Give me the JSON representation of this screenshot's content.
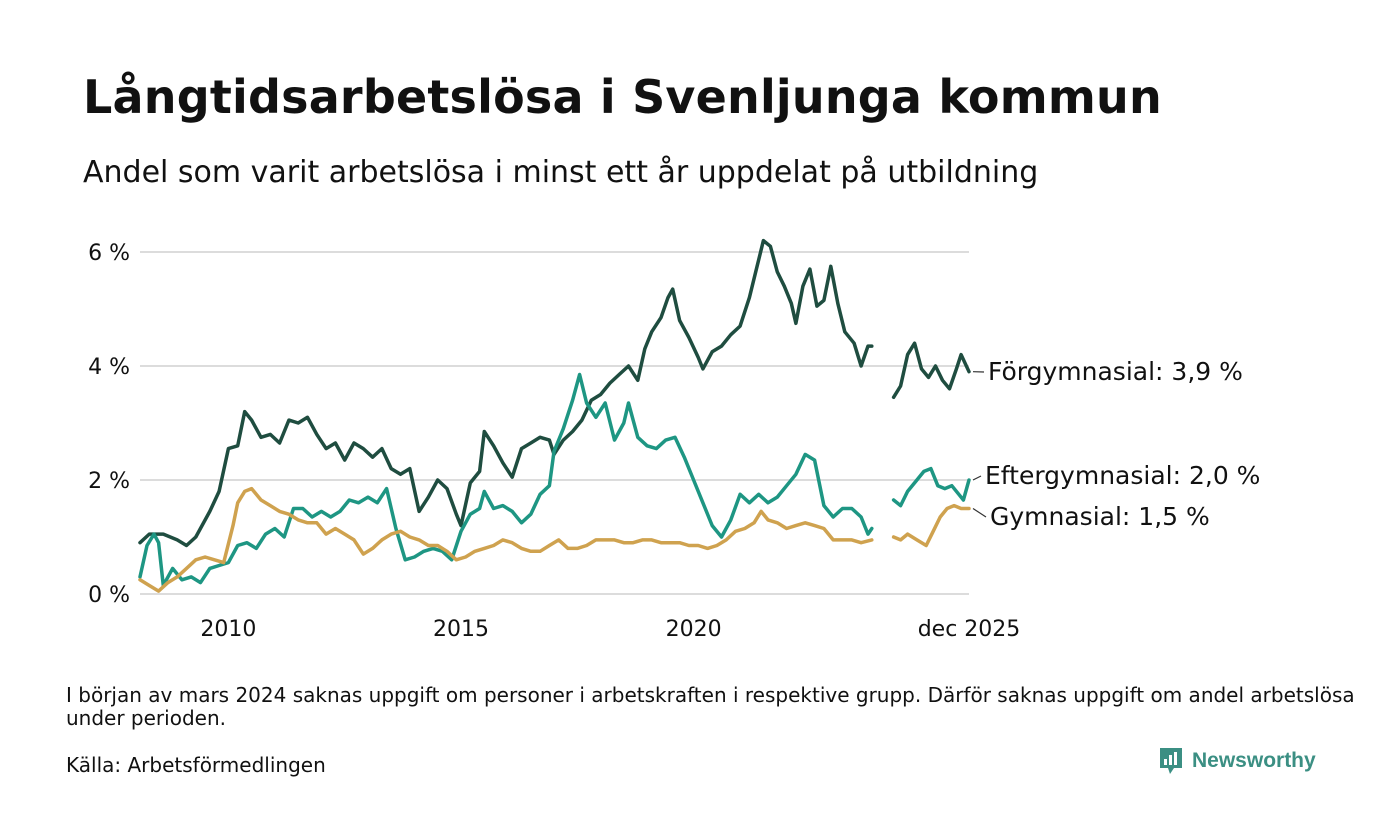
{
  "title": "Långtidsarbetslösa i Svenljunga kommun",
  "subtitle": "Andel som varit arbetslösa i minst ett år uppdelat på utbildning",
  "note": "I början av mars 2024 saknas uppgift om personer i arbetskraften i respektive grupp. Därför saknas uppgift om andel arbetslösa under perioden.",
  "source": "Källa: Arbetsförmedlingen",
  "brand": "Newsworthy",
  "colors": {
    "forgymnasial": "#1f4d40",
    "eftergymnasial": "#1e9683",
    "gymnasial": "#cfa24f",
    "grid": "#dcdcdc",
    "brand": "#3b8f83"
  },
  "chart_data": {
    "type": "line",
    "title": "Långtidsarbetslösa i Svenljunga kommun",
    "subtitle": "Andel som varit arbetslösa i minst ett år uppdelat på utbildning",
    "xlabel": "",
    "ylabel": "",
    "ylim": [
      0,
      6.5
    ],
    "xlim": [
      2008.1,
      2025.92
    ],
    "y_ticks": [
      0,
      2,
      4,
      6
    ],
    "y_tick_labels": [
      "0 %",
      "2 %",
      "4 %",
      "6 %"
    ],
    "x_ticks": [
      2010,
      2015,
      2020,
      2025.92
    ],
    "x_tick_labels": [
      "2010",
      "2015",
      "2020",
      "dec 2025"
    ],
    "grid": true,
    "gap": [
      2023.83,
      2024.3
    ],
    "series": [
      {
        "name": "Förgymnasial",
        "label": "Förgymnasial: 3,9 %",
        "color_key": "forgymnasial",
        "points": [
          [
            2008.1,
            0.9
          ],
          [
            2008.3,
            1.05
          ],
          [
            2008.6,
            1.05
          ],
          [
            2008.9,
            0.95
          ],
          [
            2009.1,
            0.85
          ],
          [
            2009.3,
            1.0
          ],
          [
            2009.6,
            1.45
          ],
          [
            2009.8,
            1.8
          ],
          [
            2010.0,
            2.55
          ],
          [
            2010.2,
            2.6
          ],
          [
            2010.35,
            3.2
          ],
          [
            2010.5,
            3.05
          ],
          [
            2010.7,
            2.75
          ],
          [
            2010.9,
            2.8
          ],
          [
            2011.1,
            2.65
          ],
          [
            2011.3,
            3.05
          ],
          [
            2011.5,
            3.0
          ],
          [
            2011.7,
            3.1
          ],
          [
            2011.9,
            2.8
          ],
          [
            2012.1,
            2.55
          ],
          [
            2012.3,
            2.65
          ],
          [
            2012.5,
            2.35
          ],
          [
            2012.7,
            2.65
          ],
          [
            2012.9,
            2.55
          ],
          [
            2013.1,
            2.4
          ],
          [
            2013.3,
            2.55
          ],
          [
            2013.5,
            2.2
          ],
          [
            2013.7,
            2.1
          ],
          [
            2013.9,
            2.2
          ],
          [
            2014.1,
            1.45
          ],
          [
            2014.3,
            1.7
          ],
          [
            2014.5,
            2.0
          ],
          [
            2014.7,
            1.85
          ],
          [
            2014.9,
            1.4
          ],
          [
            2015.0,
            1.2
          ],
          [
            2015.2,
            1.95
          ],
          [
            2015.4,
            2.15
          ],
          [
            2015.5,
            2.85
          ],
          [
            2015.7,
            2.6
          ],
          [
            2015.9,
            2.3
          ],
          [
            2016.1,
            2.05
          ],
          [
            2016.3,
            2.55
          ],
          [
            2016.5,
            2.65
          ],
          [
            2016.7,
            2.75
          ],
          [
            2016.9,
            2.7
          ],
          [
            2017.0,
            2.45
          ],
          [
            2017.2,
            2.7
          ],
          [
            2017.4,
            2.85
          ],
          [
            2017.6,
            3.05
          ],
          [
            2017.8,
            3.4
          ],
          [
            2018.0,
            3.5
          ],
          [
            2018.2,
            3.7
          ],
          [
            2018.4,
            3.85
          ],
          [
            2018.6,
            4.0
          ],
          [
            2018.8,
            3.75
          ],
          [
            2018.95,
            4.3
          ],
          [
            2019.1,
            4.6
          ],
          [
            2019.3,
            4.85
          ],
          [
            2019.45,
            5.2
          ],
          [
            2019.55,
            5.35
          ],
          [
            2019.7,
            4.8
          ],
          [
            2019.9,
            4.5
          ],
          [
            2020.1,
            4.15
          ],
          [
            2020.2,
            3.95
          ],
          [
            2020.4,
            4.25
          ],
          [
            2020.6,
            4.35
          ],
          [
            2020.8,
            4.55
          ],
          [
            2021.0,
            4.7
          ],
          [
            2021.2,
            5.2
          ],
          [
            2021.35,
            5.7
          ],
          [
            2021.5,
            6.2
          ],
          [
            2021.65,
            6.1
          ],
          [
            2021.8,
            5.65
          ],
          [
            2021.95,
            5.4
          ],
          [
            2022.1,
            5.1
          ],
          [
            2022.2,
            4.75
          ],
          [
            2022.35,
            5.4
          ],
          [
            2022.5,
            5.7
          ],
          [
            2022.65,
            5.05
          ],
          [
            2022.8,
            5.15
          ],
          [
            2022.95,
            5.75
          ],
          [
            2023.1,
            5.1
          ],
          [
            2023.25,
            4.6
          ],
          [
            2023.45,
            4.4
          ],
          [
            2023.6,
            4.0
          ],
          [
            2023.75,
            4.35
          ],
          [
            2023.83,
            4.35
          ],
          [
            2024.3,
            3.45
          ],
          [
            2024.45,
            3.65
          ],
          [
            2024.6,
            4.2
          ],
          [
            2024.75,
            4.4
          ],
          [
            2024.9,
            3.95
          ],
          [
            2025.05,
            3.8
          ],
          [
            2025.2,
            4.0
          ],
          [
            2025.35,
            3.75
          ],
          [
            2025.5,
            3.6
          ],
          [
            2025.65,
            3.95
          ],
          [
            2025.75,
            4.2
          ],
          [
            2025.92,
            3.9
          ]
        ]
      },
      {
        "name": "Eftergymnasial",
        "label": "Eftergymnasial: 2,0 %",
        "color_key": "eftergymnasial",
        "points": [
          [
            2008.1,
            0.3
          ],
          [
            2008.25,
            0.85
          ],
          [
            2008.4,
            1.05
          ],
          [
            2008.5,
            0.9
          ],
          [
            2008.6,
            0.15
          ],
          [
            2008.8,
            0.45
          ],
          [
            2009.0,
            0.25
          ],
          [
            2009.2,
            0.3
          ],
          [
            2009.4,
            0.2
          ],
          [
            2009.6,
            0.45
          ],
          [
            2009.8,
            0.5
          ],
          [
            2010.0,
            0.55
          ],
          [
            2010.2,
            0.85
          ],
          [
            2010.4,
            0.9
          ],
          [
            2010.6,
            0.8
          ],
          [
            2010.8,
            1.05
          ],
          [
            2011.0,
            1.15
          ],
          [
            2011.2,
            1.0
          ],
          [
            2011.4,
            1.5
          ],
          [
            2011.6,
            1.5
          ],
          [
            2011.8,
            1.35
          ],
          [
            2012.0,
            1.45
          ],
          [
            2012.2,
            1.35
          ],
          [
            2012.4,
            1.45
          ],
          [
            2012.6,
            1.65
          ],
          [
            2012.8,
            1.6
          ],
          [
            2013.0,
            1.7
          ],
          [
            2013.2,
            1.6
          ],
          [
            2013.4,
            1.85
          ],
          [
            2013.6,
            1.15
          ],
          [
            2013.8,
            0.6
          ],
          [
            2014.0,
            0.65
          ],
          [
            2014.2,
            0.75
          ],
          [
            2014.4,
            0.8
          ],
          [
            2014.6,
            0.75
          ],
          [
            2014.8,
            0.6
          ],
          [
            2015.0,
            1.1
          ],
          [
            2015.2,
            1.4
          ],
          [
            2015.4,
            1.5
          ],
          [
            2015.5,
            1.8
          ],
          [
            2015.7,
            1.5
          ],
          [
            2015.9,
            1.55
          ],
          [
            2016.1,
            1.45
          ],
          [
            2016.3,
            1.25
          ],
          [
            2016.5,
            1.4
          ],
          [
            2016.7,
            1.75
          ],
          [
            2016.9,
            1.9
          ],
          [
            2017.0,
            2.5
          ],
          [
            2017.2,
            2.9
          ],
          [
            2017.4,
            3.4
          ],
          [
            2017.55,
            3.85
          ],
          [
            2017.7,
            3.35
          ],
          [
            2017.9,
            3.1
          ],
          [
            2018.1,
            3.35
          ],
          [
            2018.3,
            2.7
          ],
          [
            2018.5,
            3.0
          ],
          [
            2018.6,
            3.35
          ],
          [
            2018.8,
            2.75
          ],
          [
            2019.0,
            2.6
          ],
          [
            2019.2,
            2.55
          ],
          [
            2019.4,
            2.7
          ],
          [
            2019.6,
            2.75
          ],
          [
            2019.8,
            2.4
          ],
          [
            2020.0,
            2.0
          ],
          [
            2020.2,
            1.6
          ],
          [
            2020.4,
            1.2
          ],
          [
            2020.6,
            1.0
          ],
          [
            2020.8,
            1.3
          ],
          [
            2021.0,
            1.75
          ],
          [
            2021.2,
            1.6
          ],
          [
            2021.4,
            1.75
          ],
          [
            2021.6,
            1.6
          ],
          [
            2021.8,
            1.7
          ],
          [
            2022.0,
            1.9
          ],
          [
            2022.2,
            2.1
          ],
          [
            2022.4,
            2.45
          ],
          [
            2022.6,
            2.35
          ],
          [
            2022.8,
            1.55
          ],
          [
            2023.0,
            1.35
          ],
          [
            2023.2,
            1.5
          ],
          [
            2023.4,
            1.5
          ],
          [
            2023.6,
            1.35
          ],
          [
            2023.75,
            1.05
          ],
          [
            2023.83,
            1.15
          ],
          [
            2024.3,
            1.65
          ],
          [
            2024.45,
            1.55
          ],
          [
            2024.6,
            1.8
          ],
          [
            2024.8,
            2.0
          ],
          [
            2024.95,
            2.15
          ],
          [
            2025.1,
            2.2
          ],
          [
            2025.25,
            1.9
          ],
          [
            2025.4,
            1.85
          ],
          [
            2025.55,
            1.9
          ],
          [
            2025.7,
            1.75
          ],
          [
            2025.8,
            1.65
          ],
          [
            2025.92,
            2.0
          ]
        ]
      },
      {
        "name": "Gymnasial",
        "label": "Gymnasial: 1,5 %",
        "color_key": "gymnasial",
        "points": [
          [
            2008.1,
            0.25
          ],
          [
            2008.3,
            0.15
          ],
          [
            2008.5,
            0.05
          ],
          [
            2008.7,
            0.2
          ],
          [
            2008.9,
            0.3
          ],
          [
            2009.1,
            0.45
          ],
          [
            2009.3,
            0.6
          ],
          [
            2009.5,
            0.65
          ],
          [
            2009.7,
            0.6
          ],
          [
            2009.9,
            0.55
          ],
          [
            2010.1,
            1.2
          ],
          [
            2010.2,
            1.6
          ],
          [
            2010.35,
            1.8
          ],
          [
            2010.5,
            1.85
          ],
          [
            2010.7,
            1.65
          ],
          [
            2010.9,
            1.55
          ],
          [
            2011.1,
            1.45
          ],
          [
            2011.3,
            1.4
          ],
          [
            2011.5,
            1.3
          ],
          [
            2011.7,
            1.25
          ],
          [
            2011.9,
            1.25
          ],
          [
            2012.1,
            1.05
          ],
          [
            2012.3,
            1.15
          ],
          [
            2012.5,
            1.05
          ],
          [
            2012.7,
            0.95
          ],
          [
            2012.9,
            0.7
          ],
          [
            2013.1,
            0.8
          ],
          [
            2013.3,
            0.95
          ],
          [
            2013.5,
            1.05
          ],
          [
            2013.7,
            1.1
          ],
          [
            2013.9,
            1.0
          ],
          [
            2014.1,
            0.95
          ],
          [
            2014.3,
            0.85
          ],
          [
            2014.5,
            0.85
          ],
          [
            2014.7,
            0.75
          ],
          [
            2014.9,
            0.6
          ],
          [
            2015.1,
            0.65
          ],
          [
            2015.3,
            0.75
          ],
          [
            2015.5,
            0.8
          ],
          [
            2015.7,
            0.85
          ],
          [
            2015.9,
            0.95
          ],
          [
            2016.1,
            0.9
          ],
          [
            2016.3,
            0.8
          ],
          [
            2016.5,
            0.75
          ],
          [
            2016.7,
            0.75
          ],
          [
            2016.9,
            0.85
          ],
          [
            2017.1,
            0.95
          ],
          [
            2017.3,
            0.8
          ],
          [
            2017.5,
            0.8
          ],
          [
            2017.7,
            0.85
          ],
          [
            2017.9,
            0.95
          ],
          [
            2018.1,
            0.95
          ],
          [
            2018.3,
            0.95
          ],
          [
            2018.5,
            0.9
          ],
          [
            2018.7,
            0.9
          ],
          [
            2018.9,
            0.95
          ],
          [
            2019.1,
            0.95
          ],
          [
            2019.3,
            0.9
          ],
          [
            2019.5,
            0.9
          ],
          [
            2019.7,
            0.9
          ],
          [
            2019.9,
            0.85
          ],
          [
            2020.1,
            0.85
          ],
          [
            2020.3,
            0.8
          ],
          [
            2020.5,
            0.85
          ],
          [
            2020.7,
            0.95
          ],
          [
            2020.9,
            1.1
          ],
          [
            2021.1,
            1.15
          ],
          [
            2021.3,
            1.25
          ],
          [
            2021.45,
            1.45
          ],
          [
            2021.6,
            1.3
          ],
          [
            2021.8,
            1.25
          ],
          [
            2022.0,
            1.15
          ],
          [
            2022.2,
            1.2
          ],
          [
            2022.4,
            1.25
          ],
          [
            2022.6,
            1.2
          ],
          [
            2022.8,
            1.15
          ],
          [
            2023.0,
            0.95
          ],
          [
            2023.2,
            0.95
          ],
          [
            2023.4,
            0.95
          ],
          [
            2023.6,
            0.9
          ],
          [
            2023.83,
            0.95
          ],
          [
            2024.3,
            1.0
          ],
          [
            2024.45,
            0.95
          ],
          [
            2024.6,
            1.05
          ],
          [
            2024.8,
            0.95
          ],
          [
            2025.0,
            0.85
          ],
          [
            2025.15,
            1.1
          ],
          [
            2025.3,
            1.35
          ],
          [
            2025.45,
            1.5
          ],
          [
            2025.6,
            1.55
          ],
          [
            2025.75,
            1.5
          ],
          [
            2025.92,
            1.5
          ]
        ]
      }
    ]
  }
}
